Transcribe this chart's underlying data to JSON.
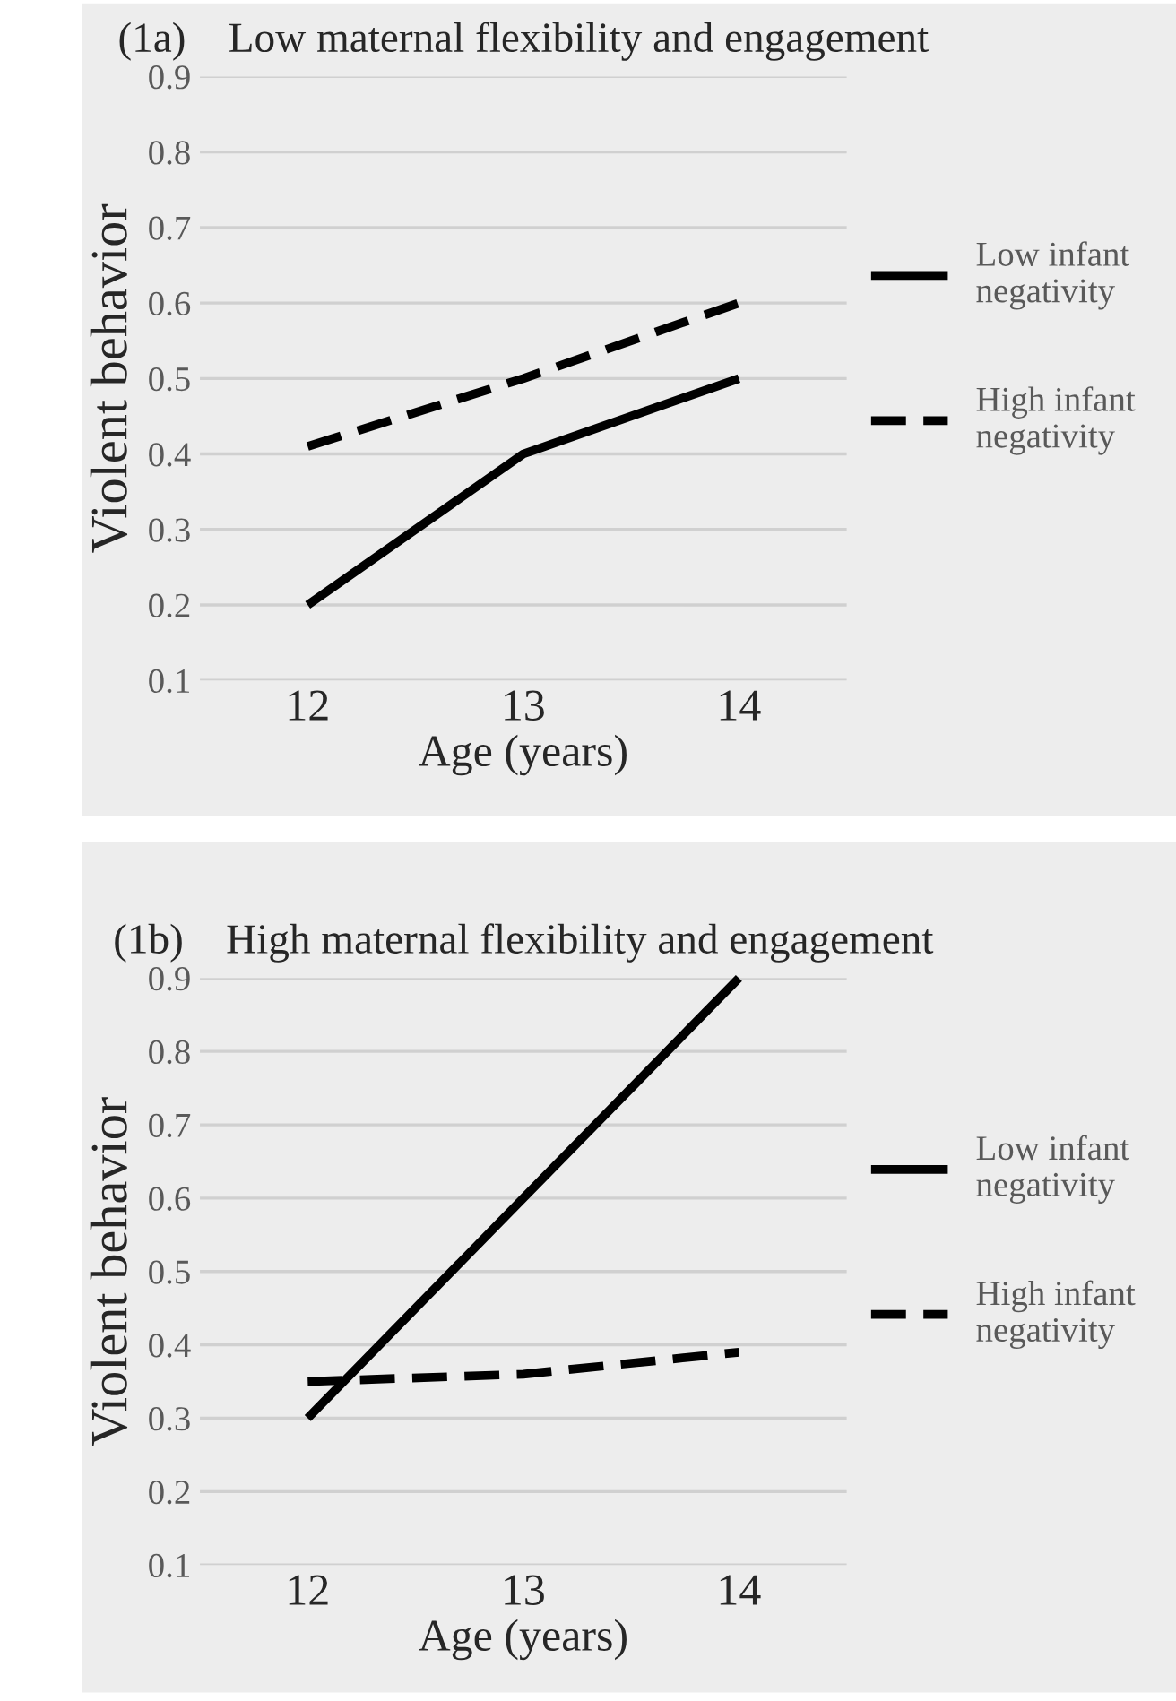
{
  "chart_data": [
    {
      "type": "line",
      "title": "(1a)    Low maternal flexibility and engagement",
      "xlabel": "Age (years)",
      "ylabel": "Violent behavior",
      "categories": [
        "12",
        "13",
        "14"
      ],
      "ylim": [
        0.1,
        0.9
      ],
      "yticks": [
        0.1,
        0.2,
        0.3,
        0.4,
        0.5,
        0.6,
        0.7,
        0.8,
        0.9
      ],
      "grid": "y",
      "legend": "right",
      "series": [
        {
          "name": "Low infant negativity",
          "color": "#000000",
          "line_style": "solid",
          "values": [
            0.2,
            0.4,
            0.5
          ]
        },
        {
          "name": "High infant negativity",
          "color": "#000000",
          "line_style": "dashed",
          "values": [
            0.41,
            0.5,
            0.6
          ]
        }
      ]
    },
    {
      "type": "line",
      "title": "(1b)    High maternal flexibility and engagement",
      "xlabel": "Age (years)",
      "ylabel": "Violent behavior",
      "categories": [
        "12",
        "13",
        "14"
      ],
      "ylim": [
        0.1,
        0.9
      ],
      "yticks": [
        0.1,
        0.2,
        0.3,
        0.4,
        0.5,
        0.6,
        0.7,
        0.8,
        0.9
      ],
      "grid": "y",
      "legend": "right",
      "series": [
        {
          "name": "Low infant negativity",
          "color": "#000000",
          "line_style": "solid",
          "values": [
            0.3,
            0.6,
            0.9
          ]
        },
        {
          "name": "High infant negativity",
          "color": "#000000",
          "line_style": "dashed",
          "values": [
            0.35,
            0.36,
            0.39
          ]
        }
      ]
    }
  ]
}
